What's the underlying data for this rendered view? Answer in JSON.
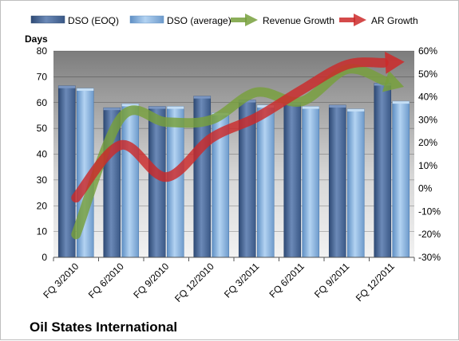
{
  "chart_data": {
    "type": "bar",
    "title": "Oil States International",
    "y_left_label": "Days",
    "y_left_lim": [
      0,
      80
    ],
    "y_left_ticks": [
      "0",
      "10",
      "20",
      "30",
      "40",
      "50",
      "60",
      "70",
      "80"
    ],
    "y_right_lim": [
      -30,
      60
    ],
    "y_right_ticks": [
      "-30%",
      "-20%",
      "-10%",
      "0%",
      "10%",
      "20%",
      "30%",
      "40%",
      "50%",
      "60%"
    ],
    "categories": [
      "FQ 3/2010",
      "FQ 6/2010",
      "FQ 9/2010",
      "FQ 12/2010",
      "FQ 3/2011",
      "FQ 6/2011",
      "FQ 9/2011",
      "FQ 12/2011"
    ],
    "grid": true,
    "legend_position": "top",
    "series": [
      {
        "name": "DSO (EOQ)",
        "kind": "bar",
        "axis": "left",
        "color": "#4f6e9b",
        "values": [
          66.5,
          58,
          58.5,
          62.5,
          61,
          60,
          59,
          67.5
        ]
      },
      {
        "name": "DSO (average)",
        "kind": "bar",
        "axis": "left",
        "color": "#8fb8e0",
        "values": [
          65.5,
          59.5,
          58.5,
          56,
          59,
          58.5,
          57.5,
          60.5
        ]
      },
      {
        "name": "Revenue Growth",
        "kind": "line",
        "axis": "right",
        "color": "#77a03c",
        "values": [
          -20,
          31,
          29,
          30,
          42,
          38,
          52,
          46
        ]
      },
      {
        "name": "AR Growth",
        "kind": "line",
        "axis": "right",
        "color": "#cc2a2a",
        "values": [
          -4,
          19,
          5,
          22,
          31,
          43,
          54,
          55
        ]
      }
    ]
  }
}
